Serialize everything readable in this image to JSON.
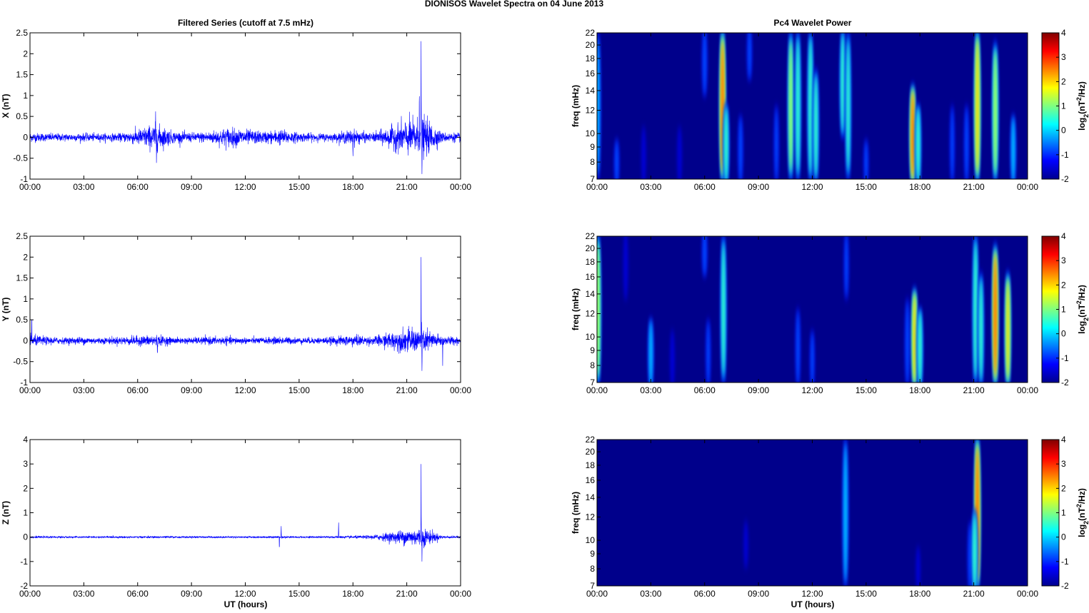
{
  "title": "DIONISOS Wavelet Spectra on 04 June     2013",
  "left_title": "Filtered Series (cutoff at 7.5 mHz)",
  "right_title": "Pc4 Wavelet Power",
  "xlabel": "UT (hours)",
  "freq_label": "freq (mHz)",
  "colorbar_label": "log2(nT2/Hz)",
  "time_ticks": [
    "00:00",
    "03:00",
    "06:00",
    "09:00",
    "12:00",
    "15:00",
    "18:00",
    "21:00",
    "00:00"
  ],
  "freq_ticks": [
    7,
    8,
    9,
    10,
    12,
    14,
    16,
    18,
    20,
    22
  ],
  "colorbar_ticks": [
    -2,
    -1,
    0,
    1,
    2,
    3,
    4
  ],
  "colors": {
    "series": "#0000ff",
    "background": "#00008b"
  },
  "chart_data": [
    {
      "type": "line",
      "name": "X",
      "ylabel": "X (nT)",
      "xlim": [
        0,
        24
      ],
      "ylim": [
        -1,
        2.5
      ],
      "yticks": [
        "2.5",
        "2",
        "1.5",
        "1",
        "0.5",
        "0",
        "-0.5",
        "-1"
      ],
      "envelope_hourly": [
        0.12,
        0.1,
        0.1,
        0.1,
        0.1,
        0.1,
        0.2,
        0.35,
        0.15,
        0.12,
        0.15,
        0.25,
        0.2,
        0.15,
        0.2,
        0.12,
        0.1,
        0.1,
        0.2,
        0.1,
        0.25,
        0.45,
        0.5,
        0.12,
        0.12
      ],
      "spikes": [
        {
          "t": 7.05,
          "v": -0.7
        },
        {
          "t": 7.0,
          "v": 0.62
        },
        {
          "t": 18.0,
          "v": -0.45
        },
        {
          "t": 21.8,
          "v": 2.3
        },
        {
          "t": 21.85,
          "v": -1.0
        },
        {
          "t": 21.7,
          "v": 1.5
        }
      ]
    },
    {
      "type": "line",
      "name": "Y",
      "ylabel": "Y (nT)",
      "xlim": [
        0,
        24
      ],
      "ylim": [
        -1,
        2.5
      ],
      "yticks": [
        "2.5",
        "2",
        "1.5",
        "1",
        "0.5",
        "0",
        "-0.5",
        "-1"
      ],
      "envelope_hourly": [
        0.15,
        0.1,
        0.08,
        0.1,
        0.08,
        0.1,
        0.12,
        0.15,
        0.08,
        0.08,
        0.1,
        0.1,
        0.08,
        0.08,
        0.1,
        0.08,
        0.08,
        0.1,
        0.15,
        0.1,
        0.2,
        0.3,
        0.3,
        0.12,
        0.1
      ],
      "spikes": [
        {
          "t": 0.1,
          "v": 0.75
        },
        {
          "t": 21.8,
          "v": 2.0
        },
        {
          "t": 21.85,
          "v": -0.9
        },
        {
          "t": 23.0,
          "v": -0.6
        },
        {
          "t": 7.1,
          "v": -0.4
        }
      ]
    },
    {
      "type": "line",
      "name": "Z",
      "ylabel": "Z (nT)",
      "xlim": [
        0,
        24
      ],
      "ylim": [
        -2,
        4
      ],
      "yticks": [
        "4",
        "3",
        "2",
        "1",
        "0",
        "-1",
        "-2"
      ],
      "envelope_hourly": [
        0.05,
        0.04,
        0.04,
        0.04,
        0.04,
        0.04,
        0.04,
        0.05,
        0.04,
        0.04,
        0.04,
        0.04,
        0.04,
        0.04,
        0.05,
        0.04,
        0.04,
        0.05,
        0.06,
        0.08,
        0.2,
        0.35,
        0.4,
        0.06,
        0.05
      ],
      "spikes": [
        {
          "t": 21.8,
          "v": 3.0
        },
        {
          "t": 21.85,
          "v": -1.2
        },
        {
          "t": 13.9,
          "v": -0.6
        },
        {
          "t": 17.2,
          "v": 0.6
        },
        {
          "t": 14.0,
          "v": 0.45
        }
      ]
    },
    {
      "type": "heatmap",
      "name": "X power",
      "xlim": [
        0,
        24
      ],
      "ylim_mHz": [
        7,
        22
      ],
      "clim": [
        -2,
        4
      ],
      "bursts": [
        {
          "t": 0.05,
          "f": [
            7,
            22
          ],
          "p": 0
        },
        {
          "t": 1.1,
          "f": [
            7,
            9
          ],
          "p": -0.5
        },
        {
          "t": 2.6,
          "f": [
            7,
            10
          ],
          "p": -1
        },
        {
          "t": 4.6,
          "f": [
            7,
            10
          ],
          "p": -1
        },
        {
          "t": 6.0,
          "f": [
            14,
            22
          ],
          "p": -0.3
        },
        {
          "t": 7.0,
          "f": [
            7,
            22
          ],
          "p": 2.8
        },
        {
          "t": 7.2,
          "f": [
            7,
            12
          ],
          "p": 1
        },
        {
          "t": 8.0,
          "f": [
            7,
            11
          ],
          "p": -0.5
        },
        {
          "t": 8.5,
          "f": [
            16,
            22
          ],
          "p": -0.6
        },
        {
          "t": 10.0,
          "f": [
            7,
            12
          ],
          "p": -0.8
        },
        {
          "t": 10.8,
          "f": [
            7,
            22
          ],
          "p": 1.3
        },
        {
          "t": 11.2,
          "f": [
            7,
            22
          ],
          "p": 1.0
        },
        {
          "t": 11.9,
          "f": [
            7,
            22
          ],
          "p": 1.2
        },
        {
          "t": 12.2,
          "f": [
            7,
            16
          ],
          "p": 0.8
        },
        {
          "t": 13.7,
          "f": [
            10,
            22
          ],
          "p": 0.9
        },
        {
          "t": 14.0,
          "f": [
            7,
            22
          ],
          "p": 0.6
        },
        {
          "t": 15.0,
          "f": [
            7,
            9
          ],
          "p": -0.8
        },
        {
          "t": 17.6,
          "f": [
            7,
            14
          ],
          "p": 2.7
        },
        {
          "t": 17.9,
          "f": [
            7,
            12
          ],
          "p": 1
        },
        {
          "t": 19.8,
          "f": [
            7,
            12
          ],
          "p": -0.8
        },
        {
          "t": 20.6,
          "f": [
            7,
            12
          ],
          "p": -0.6
        },
        {
          "t": 21.2,
          "f": [
            7,
            22
          ],
          "p": 2.6
        },
        {
          "t": 22.2,
          "f": [
            7,
            20
          ],
          "p": 1.6
        },
        {
          "t": 23.2,
          "f": [
            7,
            11
          ],
          "p": 0.3
        }
      ]
    },
    {
      "type": "heatmap",
      "name": "Y power",
      "xlim": [
        0,
        24
      ],
      "ylim_mHz": [
        7,
        22
      ],
      "clim": [
        -2,
        4
      ],
      "bursts": [
        {
          "t": 0.05,
          "f": [
            7,
            22
          ],
          "p": 1.8
        },
        {
          "t": 1.6,
          "f": [
            14,
            22
          ],
          "p": -1
        },
        {
          "t": 3.0,
          "f": [
            7,
            11
          ],
          "p": 0.3
        },
        {
          "t": 4.2,
          "f": [
            7,
            10
          ],
          "p": -1
        },
        {
          "t": 6.0,
          "f": [
            17,
            22
          ],
          "p": -0.3
        },
        {
          "t": 7.05,
          "f": [
            7,
            22
          ],
          "p": 0.8
        },
        {
          "t": 6.2,
          "f": [
            7,
            11
          ],
          "p": -0.8
        },
        {
          "t": 11.2,
          "f": [
            7,
            12
          ],
          "p": -0.6
        },
        {
          "t": 12.0,
          "f": [
            7,
            10
          ],
          "p": -0.8
        },
        {
          "t": 13.9,
          "f": [
            14,
            22
          ],
          "p": -0.8
        },
        {
          "t": 17.3,
          "f": [
            7,
            13
          ],
          "p": -0.5
        },
        {
          "t": 17.7,
          "f": [
            7,
            14
          ],
          "p": 2.5
        },
        {
          "t": 18.0,
          "f": [
            7,
            12
          ],
          "p": 1
        },
        {
          "t": 21.1,
          "f": [
            7,
            22
          ],
          "p": 1.2
        },
        {
          "t": 21.4,
          "f": [
            7,
            16
          ],
          "p": 0.8
        },
        {
          "t": 22.2,
          "f": [
            7,
            20
          ],
          "p": 3.0
        },
        {
          "t": 22.9,
          "f": [
            7,
            16
          ],
          "p": 2.0
        }
      ]
    },
    {
      "type": "heatmap",
      "name": "Z power",
      "xlim": [
        0,
        24
      ],
      "ylim_mHz": [
        7,
        22
      ],
      "clim": [
        -2,
        4
      ],
      "bursts": [
        {
          "t": 8.3,
          "f": [
            8.5,
            11
          ],
          "p": -1.3
        },
        {
          "t": 13.85,
          "f": [
            7,
            22
          ],
          "p": 0.5
        },
        {
          "t": 17.9,
          "f": [
            7,
            9
          ],
          "p": -1.3
        },
        {
          "t": 20.8,
          "f": [
            7,
            11
          ],
          "p": -0.5
        },
        {
          "t": 21.2,
          "f": [
            7,
            22
          ],
          "p": 3.0
        },
        {
          "t": 21.05,
          "f": [
            7,
            12
          ],
          "p": 1.2
        }
      ]
    }
  ]
}
